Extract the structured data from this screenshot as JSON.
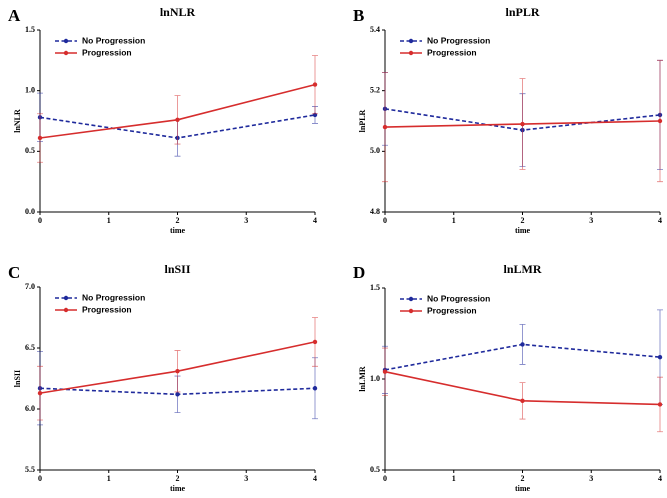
{
  "chart_data": [
    {
      "type": "line",
      "panel": "A",
      "title": "lnNLR",
      "xlabel": "time",
      "ylabel": "lnNLR",
      "x": [
        0,
        2,
        4
      ],
      "xlim": [
        0,
        4
      ],
      "xticks": [
        0,
        1,
        2,
        3,
        4
      ],
      "ylim": [
        0,
        1.5
      ],
      "yticks": [
        {
          "value": 0,
          "label": "0.0"
        },
        0.5,
        {
          "value": 1,
          "label": "1.0"
        },
        1.5
      ],
      "legend": "top-left",
      "series": [
        {
          "name": "No Progression",
          "color": "#1f2a9c",
          "dashed": true,
          "values": [
            0.78,
            0.61,
            0.8
          ],
          "errors": [
            0.2,
            0.15,
            0.07
          ]
        },
        {
          "name": "Progression",
          "color": "#d62d2d",
          "dashed": false,
          "values": [
            0.61,
            0.76,
            1.05
          ],
          "errors": [
            0.2,
            0.2,
            0.24
          ]
        }
      ]
    },
    {
      "type": "line",
      "panel": "B",
      "title": "lnPLR",
      "xlabel": "time",
      "ylabel": "lnPLR",
      "x": [
        0,
        2,
        4
      ],
      "xlim": [
        0,
        4
      ],
      "xticks": [
        0,
        1,
        2,
        3,
        4
      ],
      "ylim": [
        4.8,
        5.4
      ],
      "yticks": [
        4.8,
        {
          "value": 5,
          "label": "5.0"
        },
        5.2,
        5.4
      ],
      "legend": "top-left",
      "series": [
        {
          "name": "No Progression",
          "color": "#1f2a9c",
          "dashed": true,
          "values": [
            5.14,
            5.07,
            5.12
          ],
          "errors": [
            0.12,
            0.12,
            0.18
          ]
        },
        {
          "name": "Progression",
          "color": "#d62d2d",
          "dashed": false,
          "values": [
            5.08,
            5.09,
            5.1
          ],
          "errors": [
            0.18,
            0.15,
            0.2
          ]
        }
      ]
    },
    {
      "type": "line",
      "panel": "C",
      "title": "lnSII",
      "xlabel": "time",
      "ylabel": "lnSII",
      "x": [
        0,
        2,
        4
      ],
      "xlim": [
        0,
        4
      ],
      "xticks": [
        0,
        1,
        2,
        3,
        4
      ],
      "ylim": [
        5.5,
        7
      ],
      "yticks": [
        5.5,
        {
          "value": 6,
          "label": "6.0"
        },
        6.5,
        {
          "value": 7,
          "label": "7.0"
        }
      ],
      "legend": "top-left",
      "series": [
        {
          "name": "No Progression",
          "color": "#1f2a9c",
          "dashed": true,
          "values": [
            6.17,
            6.12,
            6.17
          ],
          "errors": [
            0.3,
            0.15,
            0.25
          ]
        },
        {
          "name": "Progression",
          "color": "#d62d2d",
          "dashed": false,
          "values": [
            6.13,
            6.31,
            6.55
          ],
          "errors": [
            0.22,
            0.17,
            0.2
          ]
        }
      ]
    },
    {
      "type": "line",
      "panel": "D",
      "title": "lnLMR",
      "xlabel": "time",
      "ylabel": "lnLMR",
      "x": [
        0,
        2,
        4
      ],
      "xlim": [
        0,
        4
      ],
      "xticks": [
        0,
        1,
        2,
        3,
        4
      ],
      "ylim": [
        0.5,
        1.5
      ],
      "yticks": [
        0.5,
        {
          "value": 1,
          "label": "1.0"
        },
        1.5
      ],
      "legend": "top-left",
      "series": [
        {
          "name": "No Progression",
          "color": "#1f2a9c",
          "dashed": true,
          "values": [
            1.05,
            1.19,
            1.12
          ],
          "errors": [
            0.13,
            0.11,
            0.26
          ]
        },
        {
          "name": "Progression",
          "color": "#d62d2d",
          "dashed": false,
          "values": [
            1.04,
            0.88,
            0.86
          ],
          "errors": [
            0.13,
            0.1,
            0.15
          ]
        }
      ]
    }
  ]
}
